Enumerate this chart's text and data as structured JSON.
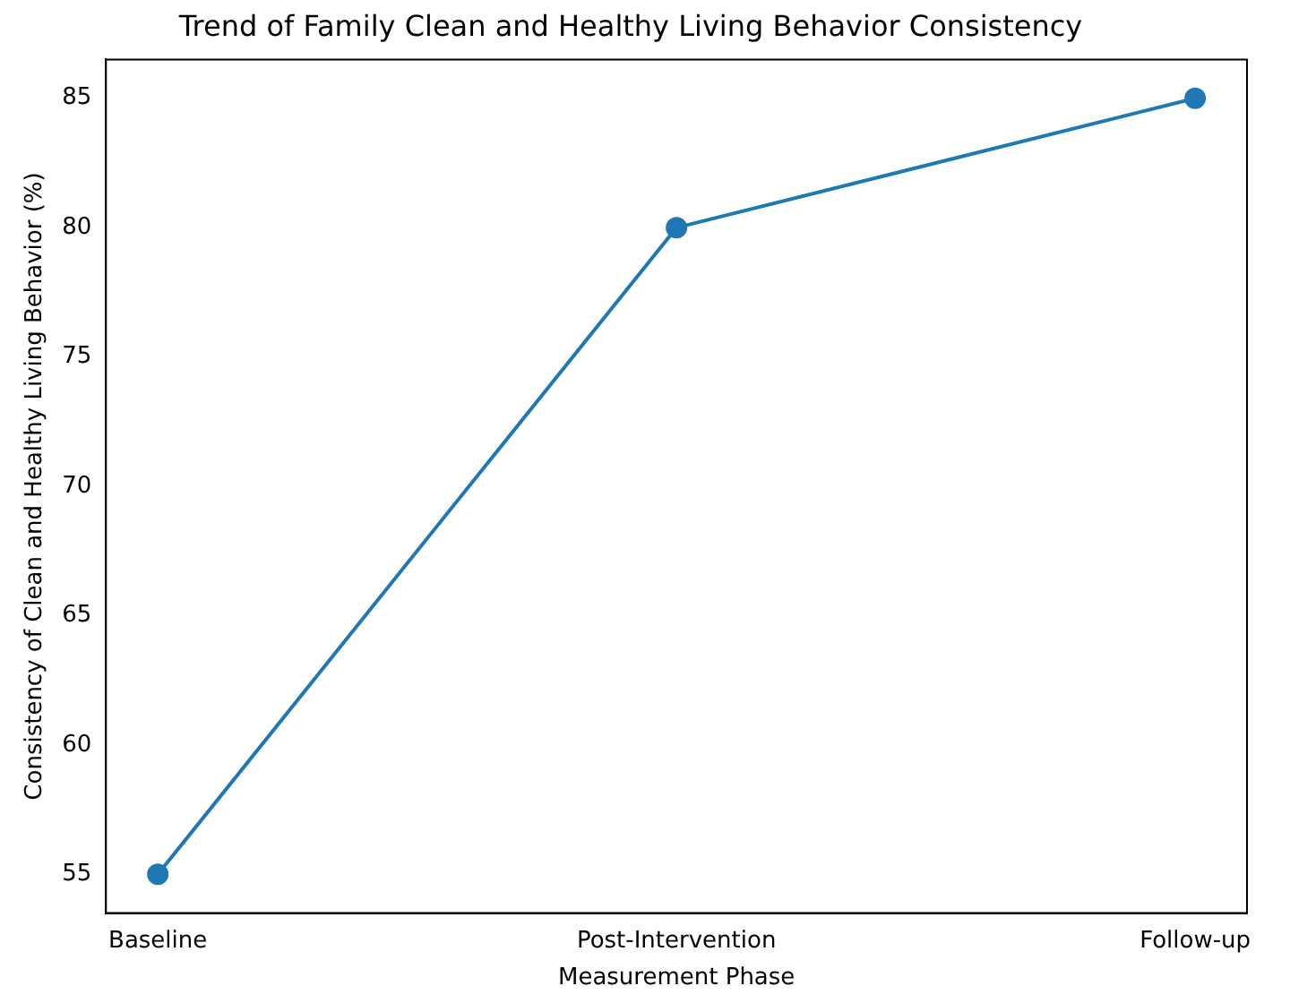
{
  "chart_data": {
    "type": "line",
    "title": "Trend of Family Clean and Healthy Living Behavior Consistency",
    "xlabel": "Measurement Phase",
    "ylabel": "Consistency of Clean and Healthy Living Behavior (%)",
    "categories": [
      "Baseline",
      "Post-Intervention",
      "Follow-up"
    ],
    "series": [
      {
        "color": "#1f77b4",
        "values": [
          55,
          80,
          85
        ]
      }
    ],
    "ylim": [
      53.5,
      86.5
    ],
    "yticks": [
      55,
      60,
      65,
      70,
      75,
      80,
      85
    ],
    "grid": false,
    "legend": false,
    "marker": "circle",
    "line_style": "solid"
  }
}
